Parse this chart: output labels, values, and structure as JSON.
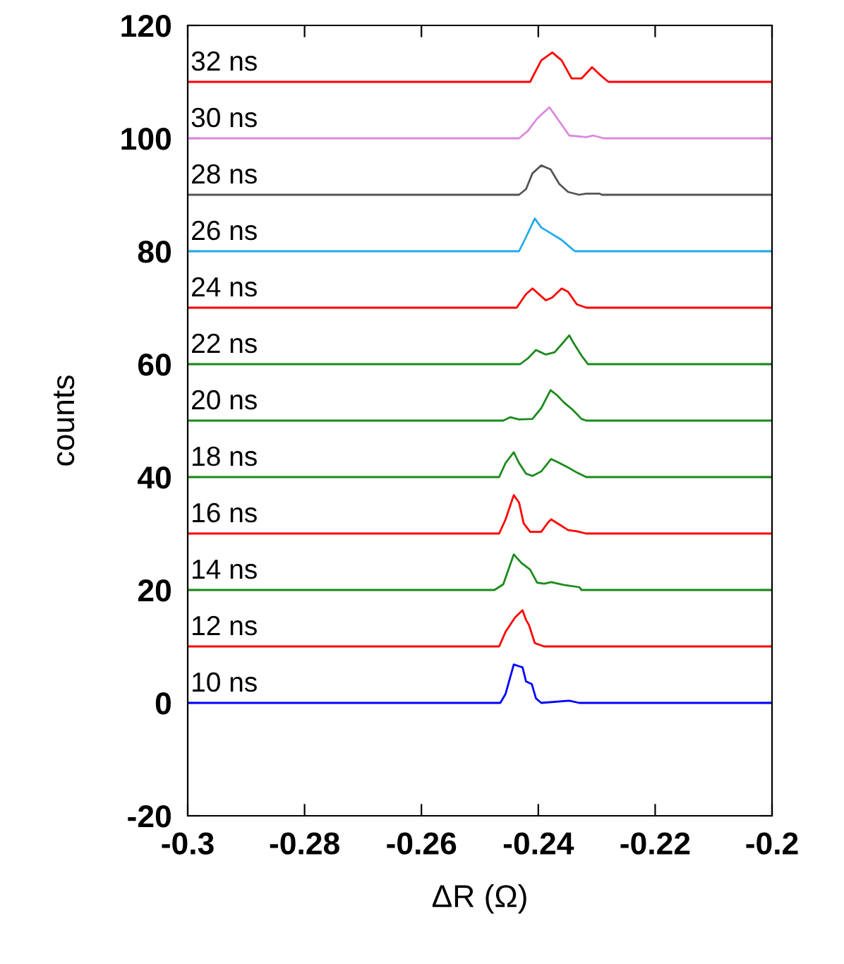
{
  "chart_data": {
    "type": "line",
    "xlabel": "ΔR (Ω)",
    "ylabel": "counts",
    "xlim": [
      -0.3,
      -0.2
    ],
    "ylim": [
      -20,
      120
    ],
    "xticks": [
      -0.3,
      -0.28,
      -0.26,
      -0.24,
      -0.22,
      -0.2
    ],
    "yticks": [
      -20,
      0,
      20,
      40,
      60,
      80,
      100,
      120
    ],
    "grid": false,
    "legend": false,
    "marker": "none",
    "line_style": "solid",
    "series": [
      {
        "name": "10 ns",
        "color": "#0000ff",
        "x": [
          -0.3,
          -0.2465,
          -0.2456,
          -0.2442,
          -0.2433,
          -0.2427,
          -0.2421,
          -0.2411,
          -0.2404,
          -0.2395,
          -0.2347,
          -0.233,
          -0.2
        ],
        "values": [
          0,
          0,
          1.6,
          6.8,
          6.5,
          6.3,
          3.8,
          3.3,
          0.8,
          0,
          0.4,
          0,
          0
        ]
      },
      {
        "name": "12 ns",
        "color": "#ff0000",
        "x": [
          -0.3,
          -0.2467,
          -0.2456,
          -0.244,
          -0.2433,
          -0.2427,
          -0.2421,
          -0.2416,
          -0.2406,
          -0.239,
          -0.2
        ],
        "values": [
          10,
          10,
          12.6,
          15.1,
          15.8,
          16.4,
          14.7,
          13.8,
          10.6,
          10,
          10
        ]
      },
      {
        "name": "14 ns",
        "color": "#1a8a1a",
        "x": [
          -0.3,
          -0.2475,
          -0.246,
          -0.2442,
          -0.2429,
          -0.2414,
          -0.2402,
          -0.239,
          -0.2378,
          -0.2356,
          -0.233,
          -0.2326,
          -0.2
        ],
        "values": [
          20,
          20,
          21,
          26.3,
          24.8,
          23.6,
          21.3,
          21.1,
          21.4,
          20.9,
          20.5,
          20,
          20
        ]
      },
      {
        "name": "16 ns",
        "color": "#ff0000",
        "x": [
          -0.3,
          -0.2467,
          -0.2456,
          -0.2442,
          -0.2433,
          -0.2425,
          -0.2414,
          -0.2395,
          -0.2383,
          -0.2378,
          -0.2364,
          -0.2349,
          -0.2334,
          -0.2318,
          -0.2
        ],
        "values": [
          30,
          30,
          32.5,
          36.8,
          35.5,
          31.8,
          30.3,
          30.3,
          32,
          32.5,
          31.6,
          30.6,
          30.4,
          30,
          30
        ]
      },
      {
        "name": "18 ns",
        "color": "#1a8a1a",
        "x": [
          -0.3,
          -0.2467,
          -0.2456,
          -0.2442,
          -0.2433,
          -0.2421,
          -0.241,
          -0.2395,
          -0.2378,
          -0.2364,
          -0.2349,
          -0.2334,
          -0.2318,
          -0.2
        ],
        "values": [
          40,
          40,
          42.5,
          44.4,
          42.5,
          40.6,
          40.2,
          41,
          43.2,
          42.5,
          41.7,
          40.8,
          40,
          40
        ]
      },
      {
        "name": "20 ns",
        "color": "#1a8a1a",
        "x": [
          -0.3,
          -0.246,
          -0.2448,
          -0.2433,
          -0.241,
          -0.2395,
          -0.2379,
          -0.2368,
          -0.2356,
          -0.2341,
          -0.2326,
          -0.2318,
          -0.2
        ],
        "values": [
          50,
          50,
          50.6,
          50.2,
          50.3,
          52.2,
          55.4,
          54.5,
          53.2,
          51.9,
          50.3,
          50,
          50
        ]
      },
      {
        "name": "22 ns",
        "color": "#1a8a1a",
        "x": [
          -0.3,
          -0.2431,
          -0.2418,
          -0.2404,
          -0.2387,
          -0.2372,
          -0.2356,
          -0.2347,
          -0.234,
          -0.2326,
          -0.2315,
          -0.2
        ],
        "values": [
          60,
          60,
          61,
          62.5,
          61.7,
          62.1,
          64,
          65.1,
          63.8,
          61.5,
          60,
          60
        ]
      },
      {
        "name": "24 ns",
        "color": "#ff0000",
        "x": [
          -0.3,
          -0.2437,
          -0.2421,
          -0.241,
          -0.2398,
          -0.2387,
          -0.2376,
          -0.236,
          -0.2349,
          -0.2334,
          -0.2318,
          -0.2
        ],
        "values": [
          70,
          70,
          72.4,
          73.4,
          72.3,
          71.3,
          71.8,
          73.4,
          72.8,
          70.6,
          70,
          70
        ]
      },
      {
        "name": "26 ns",
        "color": "#22aaee",
        "x": [
          -0.3,
          -0.2433,
          -0.2421,
          -0.2406,
          -0.2395,
          -0.2379,
          -0.236,
          -0.2341,
          -0.2337,
          -0.2
        ],
        "values": [
          80,
          80,
          82.5,
          85.8,
          84.2,
          83.2,
          82,
          80.3,
          80,
          80
        ]
      },
      {
        "name": "28 ns",
        "color": "#555555",
        "x": [
          -0.3,
          -0.2433,
          -0.2421,
          -0.241,
          -0.2395,
          -0.2379,
          -0.2364,
          -0.2349,
          -0.233,
          -0.2318,
          -0.2295,
          -0.2291,
          -0.2
        ],
        "values": [
          90,
          90,
          91,
          93.8,
          95.2,
          94.5,
          91.9,
          90.5,
          90,
          90.2,
          90.2,
          90,
          90
        ]
      },
      {
        "name": "30 ns",
        "color": "#dd88dd",
        "x": [
          -0.3,
          -0.2433,
          -0.2418,
          -0.2402,
          -0.2381,
          -0.2364,
          -0.2347,
          -0.2318,
          -0.2306,
          -0.2288,
          -0.2
        ],
        "values": [
          100,
          100,
          101.3,
          103.5,
          105.5,
          103,
          100.5,
          100.2,
          100.5,
          100,
          100
        ]
      },
      {
        "name": "32 ns",
        "color": "#ff0000",
        "x": [
          -0.3,
          -0.2414,
          -0.2395,
          -0.2376,
          -0.236,
          -0.2343,
          -0.2326,
          -0.2308,
          -0.2295,
          -0.228,
          -0.2
        ],
        "values": [
          110,
          110,
          113.8,
          115.2,
          113.8,
          110.6,
          110.6,
          112.6,
          111.3,
          110,
          110
        ]
      }
    ]
  }
}
